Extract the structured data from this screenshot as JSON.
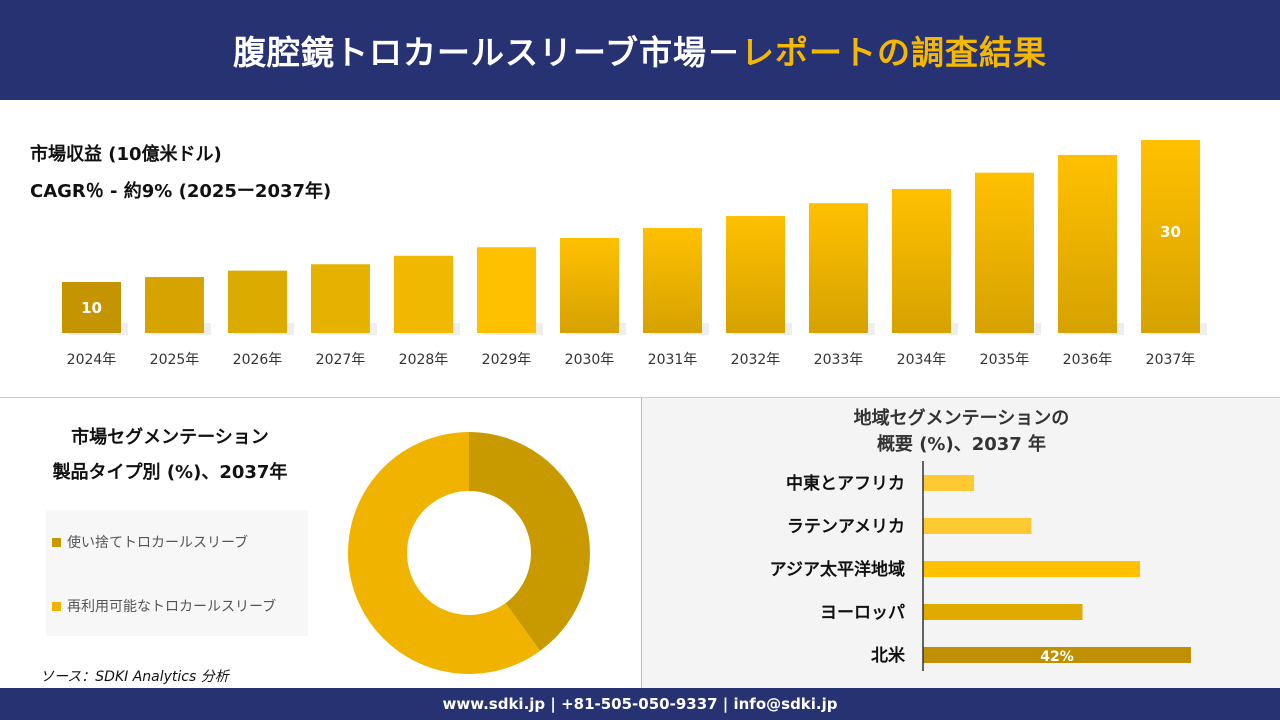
{
  "header": {
    "title_main": "腹腔鏡トロカールスリーブ市場－",
    "title_accent": "レポートの調査結果"
  },
  "revenue": {
    "label": "市場収益 (10億米ドル)",
    "cagr": "CAGR％ - 約9% (2025ー2037年)"
  },
  "chart_data": [
    {
      "type": "bar",
      "title": "市場収益 (10億米ドル)",
      "categories": [
        "2024年",
        "2025年",
        "2026年",
        "2027年",
        "2028年",
        "2029年",
        "2030年",
        "2031年",
        "2032年",
        "2033年",
        "2034年",
        "2035年",
        "2036年",
        "2037年"
      ],
      "values": [
        10,
        10.7,
        11.6,
        12.5,
        13.7,
        14.9,
        16.2,
        17.6,
        19.3,
        21.1,
        23.1,
        25.4,
        27.9,
        30
      ],
      "data_labels": {
        "0": "10",
        "13": "30"
      },
      "grid": false,
      "colors": [
        "#c49500",
        "#ffc000",
        "#d6a200"
      ]
    },
    {
      "type": "pie",
      "title": "市場セグメンテーション 製品タイプ別 (%)、2037年",
      "hole": true,
      "categories": [
        "使い捨てトロカールスリーブ",
        "再利用可能なトロカールスリーブ"
      ],
      "values": [
        40,
        60
      ],
      "colors": [
        "#c89a00",
        "#f0b400"
      ],
      "legend": "left"
    },
    {
      "type": "bar",
      "orientation": "horizontal",
      "title": "地域セグメンテーションの 概要 (%)、2037 年",
      "categories": [
        "中東とアフリカ",
        "ラテンアメリカ",
        "アジア太平洋地域",
        "ヨーロッパ",
        "北米"
      ],
      "values": [
        8,
        17,
        34,
        25,
        42
      ],
      "data_labels": {
        "4": "42%"
      },
      "colors": [
        "#ffc933",
        "#ffc933",
        "#ffc000",
        "#e0aa00",
        "#bf9000"
      ]
    }
  ],
  "segment": {
    "title_line1": "市場セグメンテーション",
    "title_line2": "製品タイプ別 (%)、2037年"
  },
  "region": {
    "title_line1": "地域セグメンテーションの",
    "title_line2": "概要 (%)、2037 年"
  },
  "source": "ソース：SDKI Analytics 分析",
  "footer": "www.sdki.jp | +81-505-050-9337 | info@sdki.jp"
}
